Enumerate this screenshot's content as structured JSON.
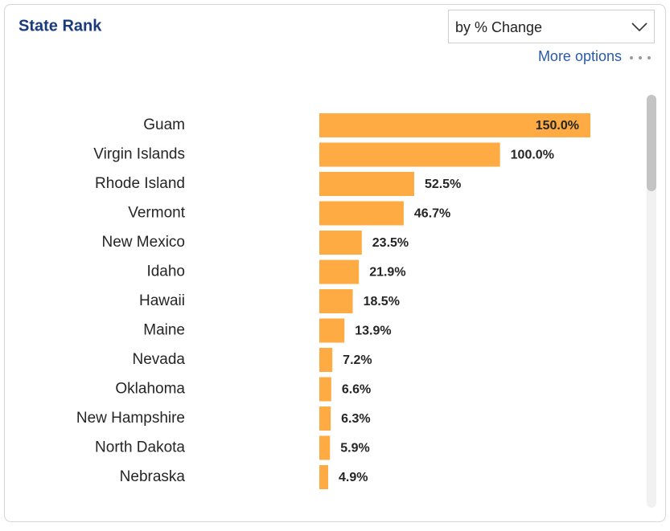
{
  "chart_data": {
    "type": "bar",
    "orientation": "horizontal",
    "title": "State Rank",
    "categories": [
      "Guam",
      "Virgin Islands",
      "Rhode Island",
      "Vermont",
      "New Mexico",
      "Idaho",
      "Hawaii",
      "Maine",
      "Nevada",
      "Oklahoma",
      "New Hampshire",
      "North Dakota",
      "Nebraska"
    ],
    "values": [
      150.0,
      100.0,
      52.5,
      46.7,
      23.5,
      21.9,
      18.5,
      13.9,
      7.2,
      6.6,
      6.3,
      5.9,
      4.9
    ],
    "value_labels": [
      "150.0%",
      "100.0%",
      "52.5%",
      "46.7%",
      "23.5%",
      "21.9%",
      "18.5%",
      "13.9%",
      "7.2%",
      "6.6%",
      "6.3%",
      "5.9%",
      "4.9%"
    ],
    "color": "#fdab42"
  },
  "dropdown": "by % Change",
  "more_options": "More options"
}
